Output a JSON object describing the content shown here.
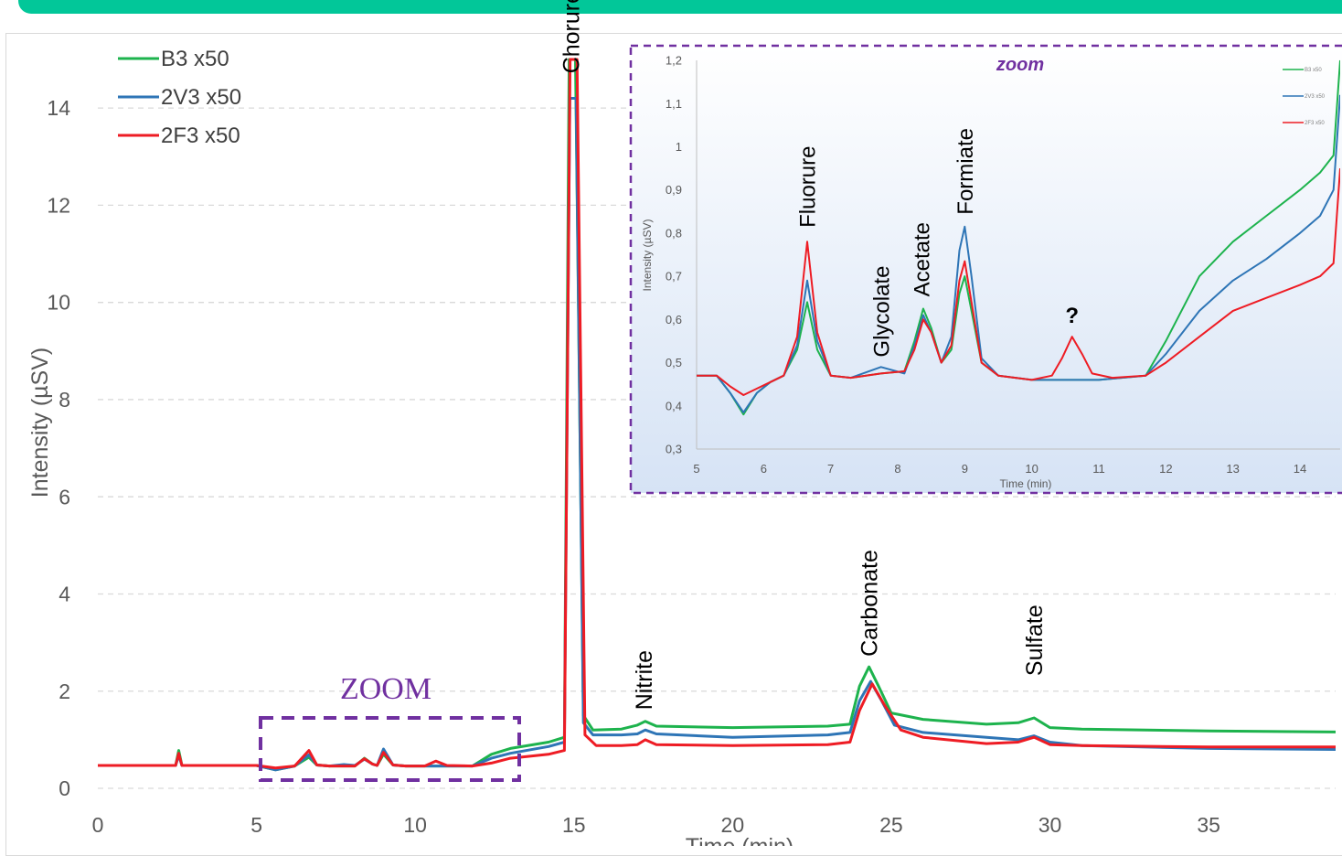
{
  "colors": {
    "B3": "#1db34d",
    "2V3": "#2e75b6",
    "2F3": "#ee1c24",
    "zoom_box": "#7030a0",
    "banner": "#02c799"
  },
  "chart_data": [
    {
      "type": "line",
      "xlabel": "Time (min)",
      "ylabel": "Intensity (µSV)",
      "xlim": [
        0,
        39
      ],
      "ylim": [
        0,
        15
      ],
      "x_ticks": [
        "0",
        "5",
        "10",
        "15",
        "20",
        "25",
        "30",
        "35"
      ],
      "y_ticks": [
        "0",
        "2",
        "4",
        "6",
        "8",
        "10",
        "12",
        "14"
      ],
      "grid": "horizontal-dashed",
      "legend_position": "top-left",
      "peak_labels": [
        {
          "text": "Chorure",
          "x": 14.9,
          "y": 14.6
        },
        {
          "text": "Nitrite",
          "x": 17.2,
          "y": 1.5
        },
        {
          "text": "Carbonate",
          "x": 24.3,
          "y": 2.6
        },
        {
          "text": "Sulfate",
          "x": 29.5,
          "y": 2.2
        }
      ],
      "zoom_label": "ZOOM",
      "zoom_region": {
        "x": [
          5.1,
          13.3
        ],
        "y": [
          0.15,
          1.45
        ]
      },
      "series": [
        {
          "name": "B3 x50",
          "color_key": "B3",
          "x": [
            0,
            2.45,
            2.55,
            2.65,
            4.5,
            5,
            5.6,
            6.2,
            6.65,
            6.9,
            7.3,
            8.1,
            8.4,
            8.65,
            8.8,
            9.0,
            9.3,
            9.7,
            10.5,
            11.8,
            12.4,
            13.0,
            14.2,
            14.7,
            14.85,
            15.05,
            15.3,
            15.6,
            16.5,
            17.0,
            17.25,
            17.6,
            20,
            23,
            23.7,
            24.0,
            24.3,
            24.6,
            25.0,
            26,
            28,
            29.0,
            29.5,
            30.0,
            31,
            35,
            39
          ],
          "y": [
            0.47,
            0.47,
            0.78,
            0.47,
            0.47,
            0.47,
            0.38,
            0.46,
            0.64,
            0.48,
            0.46,
            0.46,
            0.62,
            0.5,
            0.47,
            0.7,
            0.48,
            0.46,
            0.46,
            0.46,
            0.7,
            0.82,
            0.95,
            1.05,
            15,
            15,
            1.5,
            1.2,
            1.22,
            1.3,
            1.38,
            1.28,
            1.25,
            1.28,
            1.32,
            2.1,
            2.5,
            2.1,
            1.55,
            1.42,
            1.32,
            1.35,
            1.45,
            1.25,
            1.22,
            1.18,
            1.16
          ]
        },
        {
          "name": "2V3 x50",
          "color_key": "2V3",
          "x": [
            0,
            2.45,
            2.55,
            2.65,
            4.5,
            5,
            5.6,
            6.2,
            6.65,
            6.9,
            7.3,
            7.75,
            8.1,
            8.4,
            8.65,
            8.8,
            9.0,
            9.3,
            9.7,
            10.5,
            11.8,
            12.4,
            13.0,
            14.2,
            14.7,
            14.87,
            15.07,
            15.3,
            15.6,
            16.5,
            17.0,
            17.25,
            17.6,
            20,
            23,
            23.7,
            24.0,
            24.35,
            24.7,
            25.1,
            26,
            28,
            29.0,
            29.5,
            30.0,
            31,
            35,
            39
          ],
          "y": [
            0.47,
            0.47,
            0.68,
            0.47,
            0.47,
            0.47,
            0.38,
            0.46,
            0.69,
            0.48,
            0.46,
            0.49,
            0.47,
            0.6,
            0.5,
            0.47,
            0.81,
            0.48,
            0.46,
            0.46,
            0.46,
            0.62,
            0.72,
            0.86,
            0.95,
            14.2,
            14.2,
            1.35,
            1.1,
            1.1,
            1.12,
            1.2,
            1.12,
            1.05,
            1.1,
            1.15,
            1.8,
            2.2,
            1.8,
            1.3,
            1.15,
            1.05,
            1.0,
            1.08,
            0.95,
            0.88,
            0.82,
            0.8
          ]
        },
        {
          "name": "2F3 x50",
          "color_key": "2F3",
          "x": [
            0,
            2.45,
            2.55,
            2.65,
            4.5,
            5,
            5.6,
            6.2,
            6.65,
            6.9,
            7.3,
            8.1,
            8.4,
            8.65,
            8.8,
            9.0,
            9.3,
            9.7,
            10.3,
            10.65,
            11.0,
            11.8,
            12.4,
            13.0,
            14.2,
            14.7,
            14.88,
            15.1,
            15.35,
            15.7,
            16.5,
            17.0,
            17.25,
            17.6,
            20,
            23,
            23.7,
            24.0,
            24.4,
            24.8,
            25.3,
            26,
            28,
            29.0,
            29.5,
            30.0,
            31,
            35,
            39
          ],
          "y": [
            0.47,
            0.47,
            0.72,
            0.47,
            0.47,
            0.47,
            0.42,
            0.46,
            0.78,
            0.48,
            0.46,
            0.46,
            0.61,
            0.5,
            0.47,
            0.74,
            0.48,
            0.46,
            0.46,
            0.56,
            0.47,
            0.46,
            0.52,
            0.62,
            0.7,
            0.78,
            15,
            15,
            1.1,
            0.88,
            0.88,
            0.9,
            1.0,
            0.9,
            0.88,
            0.9,
            0.95,
            1.6,
            2.15,
            1.7,
            1.2,
            1.05,
            0.92,
            0.95,
            1.05,
            0.9,
            0.88,
            0.85,
            0.85
          ]
        }
      ]
    },
    {
      "type": "line",
      "title": "zoom",
      "xlabel": "Time (min)",
      "ylabel": "Intensity (µSV)",
      "xlim": [
        5,
        14.6
      ],
      "ylim": [
        0.3,
        1.2
      ],
      "x_ticks": [
        "5",
        "6",
        "7",
        "8",
        "9",
        "10",
        "11",
        "12",
        "13",
        "14"
      ],
      "y_ticks": [
        "0,3",
        "0,4",
        "0,5",
        "0,6",
        "0,7",
        "0,8",
        "0,9",
        "1",
        "1,1",
        "1,2"
      ],
      "legend_position": "top-right",
      "peak_labels": [
        {
          "text": "Fluorure",
          "x": 6.65,
          "y": 0.8
        },
        {
          "text": "Glycolate",
          "x": 7.75,
          "y": 0.5
        },
        {
          "text": "Acetate",
          "x": 8.35,
          "y": 0.64
        },
        {
          "text": "Formiate",
          "x": 9.0,
          "y": 0.83
        },
        {
          "text": "?",
          "x": 10.6,
          "y": 0.58
        }
      ],
      "series": [
        {
          "name": "B3 x50",
          "color_key": "B3",
          "x": [
            5,
            5.3,
            5.5,
            5.7,
            5.9,
            6.1,
            6.3,
            6.5,
            6.65,
            6.8,
            7.0,
            7.3,
            7.75,
            8.1,
            8.25,
            8.38,
            8.5,
            8.65,
            8.8,
            8.92,
            9.0,
            9.1,
            9.25,
            9.5,
            10,
            11,
            11.7,
            12.0,
            12.5,
            13,
            13.5,
            14.0,
            14.3,
            14.5,
            14.6
          ],
          "y": [
            0.47,
            0.47,
            0.43,
            0.38,
            0.43,
            0.455,
            0.47,
            0.53,
            0.64,
            0.53,
            0.47,
            0.465,
            0.475,
            0.48,
            0.55,
            0.625,
            0.58,
            0.5,
            0.53,
            0.66,
            0.7,
            0.62,
            0.5,
            0.47,
            0.46,
            0.46,
            0.47,
            0.55,
            0.7,
            0.78,
            0.84,
            0.9,
            0.94,
            0.98,
            1.2
          ]
        },
        {
          "name": "2V3 x50",
          "color_key": "2V3",
          "x": [
            5,
            5.3,
            5.5,
            5.7,
            5.9,
            6.1,
            6.3,
            6.5,
            6.65,
            6.8,
            7.0,
            7.3,
            7.75,
            8.1,
            8.25,
            8.38,
            8.5,
            8.65,
            8.8,
            8.92,
            9.0,
            9.1,
            9.25,
            9.5,
            10,
            11,
            11.7,
            12.0,
            12.5,
            13,
            13.5,
            14.0,
            14.3,
            14.5,
            14.6
          ],
          "y": [
            0.47,
            0.47,
            0.43,
            0.385,
            0.43,
            0.455,
            0.47,
            0.54,
            0.69,
            0.55,
            0.47,
            0.465,
            0.49,
            0.475,
            0.54,
            0.61,
            0.57,
            0.5,
            0.56,
            0.76,
            0.815,
            0.7,
            0.51,
            0.47,
            0.46,
            0.46,
            0.47,
            0.52,
            0.62,
            0.69,
            0.74,
            0.8,
            0.84,
            0.9,
            1.12
          ]
        },
        {
          "name": "2F3 x50",
          "color_key": "2F3",
          "x": [
            5,
            5.3,
            5.5,
            5.7,
            5.9,
            6.1,
            6.3,
            6.5,
            6.65,
            6.8,
            7.0,
            7.3,
            7.75,
            8.1,
            8.25,
            8.38,
            8.5,
            8.65,
            8.8,
            8.92,
            9.0,
            9.1,
            9.25,
            9.5,
            10,
            10.3,
            10.45,
            10.6,
            10.75,
            10.9,
            11.2,
            11.7,
            12.0,
            12.5,
            13,
            13.5,
            14.0,
            14.3,
            14.5,
            14.6
          ],
          "y": [
            0.47,
            0.47,
            0.445,
            0.425,
            0.44,
            0.455,
            0.47,
            0.56,
            0.78,
            0.57,
            0.47,
            0.465,
            0.475,
            0.48,
            0.53,
            0.6,
            0.57,
            0.5,
            0.54,
            0.69,
            0.735,
            0.64,
            0.5,
            0.47,
            0.46,
            0.47,
            0.51,
            0.56,
            0.52,
            0.475,
            0.465,
            0.47,
            0.5,
            0.56,
            0.62,
            0.65,
            0.68,
            0.7,
            0.73,
            0.95
          ]
        }
      ]
    }
  ]
}
